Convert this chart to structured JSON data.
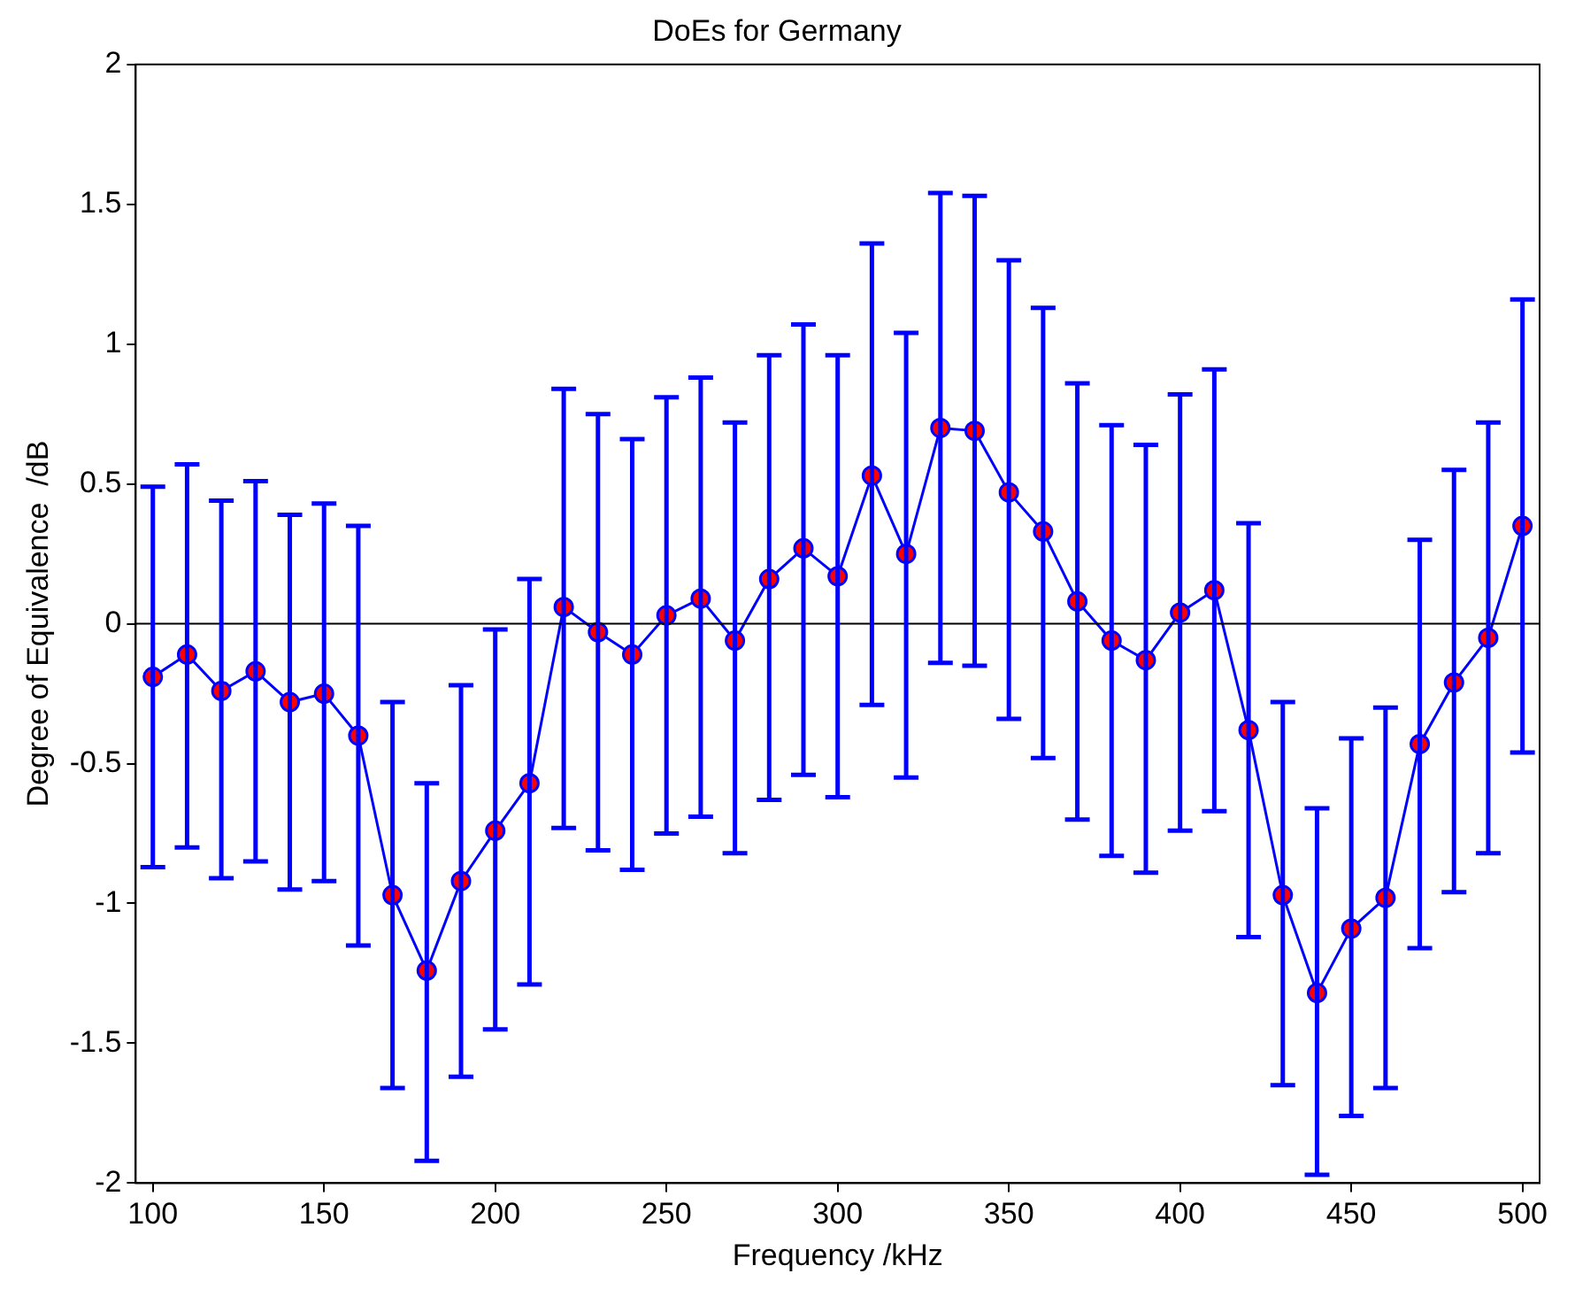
{
  "chart_data": {
    "type": "line",
    "title": "DoEs for Germany",
    "xlabel": "Frequency /kHz",
    "ylabel": "Degree of Equivalence  /dB",
    "x": [
      100,
      110,
      120,
      130,
      140,
      150,
      160,
      170,
      180,
      190,
      200,
      210,
      220,
      230,
      240,
      250,
      260,
      270,
      280,
      290,
      300,
      310,
      320,
      330,
      340,
      350,
      360,
      370,
      380,
      390,
      400,
      410,
      420,
      430,
      440,
      450,
      460,
      470,
      480,
      490,
      500
    ],
    "series": [
      {
        "color": "#0000ff",
        "values": [
          -0.19,
          -0.11,
          -0.24,
          -0.17,
          -0.28,
          -0.25,
          -0.4,
          -0.97,
          -1.24,
          -0.92,
          -0.74,
          -0.57,
          0.06,
          -0.03,
          -0.11,
          0.03,
          0.09,
          -0.06,
          0.16,
          0.27,
          0.17,
          0.53,
          0.25,
          0.7,
          0.69,
          0.47,
          0.33,
          0.08,
          -0.06,
          -0.13,
          0.04,
          0.12,
          -0.38,
          -0.97,
          -1.32,
          -1.09,
          -0.98,
          -0.43,
          -0.21,
          -0.05,
          0.35
        ],
        "errors": [
          [
            -0.87,
            0.49
          ],
          [
            -0.8,
            0.57
          ],
          [
            -0.91,
            0.44
          ],
          [
            -0.85,
            0.51
          ],
          [
            -0.95,
            0.39
          ],
          [
            -0.92,
            0.43
          ],
          [
            -1.15,
            0.35
          ],
          [
            -1.66,
            -0.28
          ],
          [
            -1.92,
            -0.57
          ],
          [
            -1.62,
            -0.22
          ],
          [
            -1.45,
            -0.02
          ],
          [
            -1.29,
            0.16
          ],
          [
            -0.73,
            0.84
          ],
          [
            -0.81,
            0.75
          ],
          [
            -0.88,
            0.66
          ],
          [
            -0.75,
            0.81
          ],
          [
            -0.69,
            0.88
          ],
          [
            -0.82,
            0.72
          ],
          [
            -0.63,
            0.96
          ],
          [
            -0.54,
            1.07
          ],
          [
            -0.62,
            0.96
          ],
          [
            -0.29,
            1.36
          ],
          [
            -0.55,
            1.04
          ],
          [
            -0.14,
            1.54
          ],
          [
            -0.15,
            1.53
          ],
          [
            -0.34,
            1.3
          ],
          [
            -0.48,
            1.13
          ],
          [
            -0.7,
            0.86
          ],
          [
            -0.83,
            0.71
          ],
          [
            -0.89,
            0.64
          ],
          [
            -0.74,
            0.82
          ],
          [
            -0.67,
            0.91
          ],
          [
            -1.12,
            0.36
          ],
          [
            -1.65,
            -0.28
          ],
          [
            -1.97,
            -0.66
          ],
          [
            -1.76,
            -0.41
          ],
          [
            -1.66,
            -0.3
          ],
          [
            -1.16,
            0.3
          ],
          [
            -0.96,
            0.55
          ],
          [
            -0.82,
            0.72
          ],
          [
            -0.46,
            1.16
          ]
        ]
      }
    ],
    "xlim": [
      95,
      505
    ],
    "xticks": [
      100,
      150,
      200,
      250,
      300,
      350,
      400,
      450,
      500
    ],
    "ylim": [
      -2,
      2
    ],
    "yticks": [
      -2,
      -1.5,
      -1,
      -0.5,
      0,
      0.5,
      1,
      1.5,
      2
    ],
    "ref_lines": [
      {
        "axis": "y",
        "value": 0,
        "color": "#000000"
      }
    ],
    "marker": "circle",
    "line_style": "solid",
    "grid": false,
    "legend": false
  }
}
